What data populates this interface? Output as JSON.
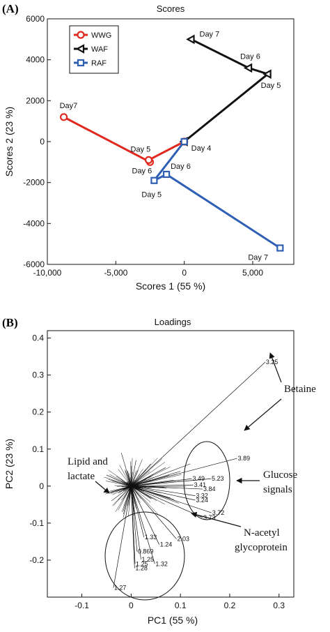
{
  "chart_data": [
    {
      "panel": "(A)",
      "type": "line",
      "title": "Scores",
      "xlabel": "Scores 1 (55 %)",
      "ylabel": "Scores 2 (23 %)",
      "xlim": [
        -10000,
        8000
      ],
      "ylim": [
        -6000,
        6000
      ],
      "xticks": [
        -10000,
        -5000,
        0,
        5000
      ],
      "xtick_labels": [
        "-10,000",
        "-5,000",
        "0",
        "5,000"
      ],
      "yticks": [
        -6000,
        -4000,
        -2000,
        0,
        2000,
        4000,
        6000
      ],
      "ytick_labels": [
        "-6000",
        "-4000",
        "-2000",
        "0",
        "2000",
        "4000",
        "6000"
      ],
      "legend_position": "top-left",
      "series": [
        {
          "name": "WWG",
          "color": "#e0281e",
          "marker": "circle",
          "points": [
            {
              "x": -8800,
              "y": 1200,
              "label": "Day7"
            },
            {
              "x": -2500,
              "y": -1000,
              "label": "Day 6"
            },
            {
              "x": -2600,
              "y": -900,
              "label": "Day 5"
            },
            {
              "x": 0,
              "y": 0,
              "label": ""
            }
          ]
        },
        {
          "name": "WAF",
          "color": "#111111",
          "marker": "triangle-left",
          "points": [
            {
              "x": 500,
              "y": 5000,
              "label": "Day 7"
            },
            {
              "x": 4700,
              "y": 3600,
              "label": "Day 6"
            },
            {
              "x": 6100,
              "y": 3300,
              "label": "Day 5"
            },
            {
              "x": 0,
              "y": 0,
              "label": "Day 4"
            }
          ]
        },
        {
          "name": "RAF",
          "color": "#2f5fb5",
          "marker": "square",
          "points": [
            {
              "x": 7000,
              "y": -5200,
              "label": "Day 7"
            },
            {
              "x": -1300,
              "y": -1600,
              "label": "Day 6"
            },
            {
              "x": -2200,
              "y": -1900,
              "label": "Day 5"
            },
            {
              "x": 0,
              "y": 0,
              "label": ""
            }
          ]
        }
      ]
    },
    {
      "panel": "(B)",
      "type": "scatter",
      "title": "Loadings",
      "xlabel": "PC1 (55 %)",
      "ylabel": "PC2 (23 %)",
      "xlim": [
        -0.17,
        0.33
      ],
      "ylim": [
        -0.3,
        0.42
      ],
      "xticks": [
        -0.1,
        0,
        0.1,
        0.2,
        0.3
      ],
      "xtick_labels": [
        "-0.1",
        "0",
        "0.1",
        "0.2",
        "0.3"
      ],
      "yticks": [
        -0.2,
        -0.1,
        0,
        0.1,
        0.2,
        0.3,
        0.4
      ],
      "ytick_labels": [
        "-0.2",
        "-0.1",
        "0",
        "0.1",
        "0.2",
        "0.3",
        "0.4"
      ],
      "labeled_loadings": [
        {
          "label": "3.25",
          "x": 0.272,
          "y": 0.335
        },
        {
          "label": "3.89",
          "x": 0.215,
          "y": 0.075
        },
        {
          "label": "3.49",
          "x": 0.123,
          "y": 0.02
        },
        {
          "label": "5.23",
          "x": 0.162,
          "y": 0.02
        },
        {
          "label": "3.41",
          "x": 0.126,
          "y": 0.003
        },
        {
          "label": "3.84",
          "x": 0.145,
          "y": -0.008
        },
        {
          "label": "3.32",
          "x": 0.13,
          "y": -0.026
        },
        {
          "label": "3.24",
          "x": 0.13,
          "y": -0.038
        },
        {
          "label": "3.72",
          "x": 0.163,
          "y": -0.072
        },
        {
          "label": "3.73",
          "x": 0.145,
          "y": -0.085
        },
        {
          "label": "2.03",
          "x": 0.092,
          "y": -0.143
        },
        {
          "label": "1.33",
          "x": 0.026,
          "y": -0.138
        },
        {
          "label": "1.24",
          "x": 0.057,
          "y": -0.158
        },
        {
          "label": "0.869",
          "x": 0.012,
          "y": -0.177
        },
        {
          "label": "1.25",
          "x": 0.02,
          "y": -0.198
        },
        {
          "label": "1.32",
          "x": 0.048,
          "y": -0.21
        },
        {
          "label": "1.25",
          "x": 0.008,
          "y": -0.21
        },
        {
          "label": "1.28",
          "x": 0.007,
          "y": -0.222
        },
        {
          "label": "1.27",
          "x": -0.036,
          "y": -0.275
        }
      ],
      "annotations": [
        {
          "text": "Betaine"
        },
        {
          "text": "Glucose signals",
          "lines": [
            "Glucose",
            "signals"
          ]
        },
        {
          "text": "Lipid and lactate",
          "lines": [
            "Lipid and",
            "lactate"
          ]
        },
        {
          "text": "N-acetyl glycoprotein",
          "lines": [
            "N-acetyl",
            "glycoprotein"
          ]
        }
      ]
    }
  ]
}
